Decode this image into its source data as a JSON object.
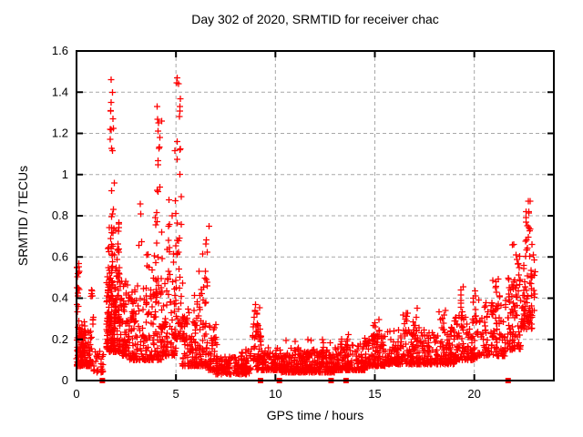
{
  "chart_data": {
    "type": "scatter",
    "title": "Day 302 of 2020, SRMTID for receiver chac",
    "xlabel": "GPS time / hours",
    "ylabel": "SRMTID / TECUs",
    "xlim": [
      0,
      24
    ],
    "ylim": [
      0,
      1.6
    ],
    "xticks": [
      {
        "value": 0,
        "label": "0"
      },
      {
        "value": 5,
        "label": "5"
      },
      {
        "value": 10,
        "label": "10"
      },
      {
        "value": 15,
        "label": "15"
      },
      {
        "value": 20,
        "label": "20"
      }
    ],
    "yticks": [
      {
        "value": 0,
        "label": "0"
      },
      {
        "value": 0.2,
        "label": "0.2"
      },
      {
        "value": 0.4,
        "label": "0.4"
      },
      {
        "value": 0.6,
        "label": "0.6"
      },
      {
        "value": 0.8,
        "label": "0.8"
      },
      {
        "value": 1,
        "label": "1"
      },
      {
        "value": 1.2,
        "label": "1.2"
      },
      {
        "value": 1.4,
        "label": "1.4"
      },
      {
        "value": 1.6,
        "label": "1.6"
      }
    ],
    "grid": {
      "show": true,
      "color": "#a8a8a8",
      "dash": "4,3"
    },
    "border_color": "#000000",
    "marker": {
      "shape": "plus",
      "color": "#ff0000",
      "size": 7
    },
    "seed": 20302,
    "cluster_format": "[x_start, x_end, count, y_min, y_max, y_bias_power]",
    "point_clusters": [
      [
        0.0,
        0.15,
        12,
        0.42,
        0.58,
        1
      ],
      [
        0.0,
        0.12,
        6,
        0.25,
        0.42,
        1
      ],
      [
        0.0,
        0.75,
        130,
        0.07,
        0.24,
        2.2
      ],
      [
        0.05,
        0.5,
        25,
        0.14,
        0.3,
        2
      ],
      [
        0.7,
        0.85,
        9,
        0.27,
        0.45,
        1
      ],
      [
        0.8,
        1.35,
        30,
        0.04,
        0.16,
        1.8
      ],
      [
        1.5,
        2.2,
        150,
        0.14,
        0.55,
        2.2
      ],
      [
        1.55,
        2.15,
        55,
        0.3,
        0.75,
        2.5
      ],
      [
        1.68,
        1.92,
        24,
        0.6,
        1.46,
        1.2
      ],
      [
        1.95,
        2.2,
        10,
        0.5,
        0.8,
        1.5
      ],
      [
        2.2,
        2.65,
        70,
        0.12,
        0.5,
        2.3
      ],
      [
        2.65,
        3.4,
        85,
        0.1,
        0.48,
        2.4
      ],
      [
        3.1,
        3.3,
        4,
        0.55,
        0.9,
        1
      ],
      [
        3.5,
        3.7,
        4,
        0.5,
        0.62,
        1
      ],
      [
        3.4,
        4.3,
        100,
        0.1,
        0.45,
        2.3
      ],
      [
        3.95,
        4.3,
        16,
        0.65,
        1.34,
        1.2
      ],
      [
        3.8,
        4.3,
        12,
        0.45,
        0.68,
        1.5
      ],
      [
        4.3,
        5.0,
        80,
        0.12,
        0.5,
        2.2
      ],
      [
        4.55,
        5.0,
        14,
        0.5,
        0.95,
        1.5
      ],
      [
        4.95,
        5.3,
        20,
        0.6,
        1.47,
        1.3
      ],
      [
        4.95,
        5.4,
        40,
        0.2,
        0.6,
        2
      ],
      [
        5.3,
        6.1,
        80,
        0.07,
        0.35,
        2.3
      ],
      [
        5.9,
        6.6,
        70,
        0.07,
        0.5,
        2.4
      ],
      [
        6.1,
        6.7,
        10,
        0.45,
        0.78,
        1.5
      ],
      [
        6.6,
        7.1,
        50,
        0.05,
        0.28,
        2.6
      ],
      [
        7.0,
        8.7,
        150,
        0.03,
        0.12,
        1.8
      ],
      [
        8.3,
        8.9,
        25,
        0.05,
        0.16,
        2
      ],
      [
        8.85,
        9.3,
        45,
        0.1,
        0.37,
        1.5
      ],
      [
        8.9,
        9.25,
        15,
        0.05,
        0.12,
        1
      ],
      [
        9.3,
        10.3,
        100,
        0.05,
        0.16,
        2.2
      ],
      [
        10.3,
        13.0,
        290,
        0.04,
        0.15,
        2.2
      ],
      [
        10.5,
        12.8,
        40,
        0.11,
        0.2,
        2.5
      ],
      [
        13.0,
        14.5,
        150,
        0.05,
        0.18,
        2.2
      ],
      [
        13.2,
        13.7,
        12,
        0.14,
        0.24,
        1.5
      ],
      [
        14.5,
        15.5,
        110,
        0.07,
        0.22,
        2.2
      ],
      [
        14.9,
        15.4,
        12,
        0.2,
        0.3,
        1.5
      ],
      [
        15.5,
        17.2,
        170,
        0.08,
        0.25,
        2.2
      ],
      [
        16.4,
        16.65,
        10,
        0.22,
        0.34,
        1.3
      ],
      [
        16.9,
        17.15,
        10,
        0.22,
        0.36,
        1.3
      ],
      [
        17.2,
        19.0,
        170,
        0.08,
        0.26,
        2.2
      ],
      [
        18.2,
        18.6,
        8,
        0.24,
        0.35,
        1.2
      ],
      [
        19.0,
        20.2,
        110,
        0.1,
        0.32,
        2.2
      ],
      [
        19.25,
        19.5,
        8,
        0.3,
        0.47,
        1.3
      ],
      [
        19.9,
        20.15,
        10,
        0.28,
        0.48,
        1.3
      ],
      [
        20.2,
        21.6,
        110,
        0.12,
        0.4,
        2
      ],
      [
        20.9,
        21.35,
        12,
        0.35,
        0.5,
        1.3
      ],
      [
        21.65,
        22.35,
        80,
        0.15,
        0.5,
        1.8
      ],
      [
        21.9,
        22.3,
        14,
        0.45,
        0.66,
        1.3
      ],
      [
        22.35,
        22.9,
        70,
        0.25,
        0.68,
        1.6
      ],
      [
        22.55,
        22.85,
        12,
        0.68,
        0.88,
        1.2
      ],
      [
        22.85,
        23.1,
        14,
        0.3,
        0.62,
        1.5
      ]
    ],
    "extra_points": [
      [
        1.75,
        1.46
      ],
      [
        1.8,
        1.4
      ],
      [
        1.72,
        1.22
      ],
      [
        4.05,
        1.33
      ],
      [
        4.12,
        1.25
      ],
      [
        4.2,
        1.18
      ],
      [
        5.05,
        1.47
      ],
      [
        5.12,
        1.44
      ],
      [
        5.2,
        1.33
      ],
      [
        0.02,
        0.55
      ],
      [
        9.0,
        0.37
      ],
      [
        22.72,
        0.87
      ]
    ],
    "gap_markers": {
      "shape": "square",
      "color": "#ff0000",
      "size": 6,
      "x": [
        1.3,
        9.25,
        10.2,
        12.8,
        13.55,
        21.7
      ],
      "y": 0
    }
  }
}
